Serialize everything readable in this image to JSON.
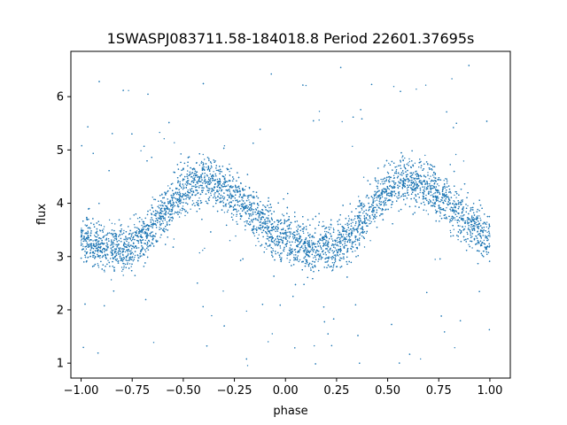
{
  "chart_data": {
    "type": "scatter",
    "title": "1SWASPJ083711.58-184018.8 Period 22601.37695s",
    "xlabel": "phase",
    "ylabel": "flux",
    "xlim": [
      -1.05,
      1.1
    ],
    "ylim": [
      0.72,
      6.85
    ],
    "xticks": [
      -1.0,
      -0.75,
      -0.5,
      -0.25,
      0.0,
      0.25,
      0.5,
      0.75,
      1.0
    ],
    "xtick_labels": [
      "−1.00",
      "−0.75",
      "−0.50",
      "−0.25",
      "0.00",
      "0.25",
      "0.50",
      "0.75",
      "1.00"
    ],
    "yticks": [
      1,
      2,
      3,
      4,
      5,
      6
    ],
    "ytick_labels": [
      "1",
      "2",
      "3",
      "4",
      "5",
      "6"
    ],
    "grid": false,
    "legend": "none",
    "series": [
      {
        "color": "#1f77b4",
        "marker_size": 0.7,
        "trend_x": [
          -1.0,
          -0.9,
          -0.8,
          -0.75,
          -0.7,
          -0.6,
          -0.5,
          -0.45,
          -0.4,
          -0.35,
          -0.3,
          -0.2,
          -0.1,
          0.0,
          0.1,
          0.2,
          0.25,
          0.3,
          0.4,
          0.5,
          0.55,
          0.6,
          0.65,
          0.7,
          0.8,
          0.9,
          1.0
        ],
        "trend_y": [
          3.3,
          3.2,
          3.15,
          3.2,
          3.35,
          3.8,
          4.25,
          4.38,
          4.42,
          4.4,
          4.3,
          4.0,
          3.6,
          3.3,
          3.15,
          3.15,
          3.2,
          3.35,
          3.8,
          4.25,
          4.38,
          4.42,
          4.4,
          4.3,
          4.0,
          3.6,
          3.3
        ],
        "scatter_spread": 0.22,
        "n_points": 9000,
        "outlier_y_range": [
          0.9,
          6.6
        ]
      }
    ]
  }
}
